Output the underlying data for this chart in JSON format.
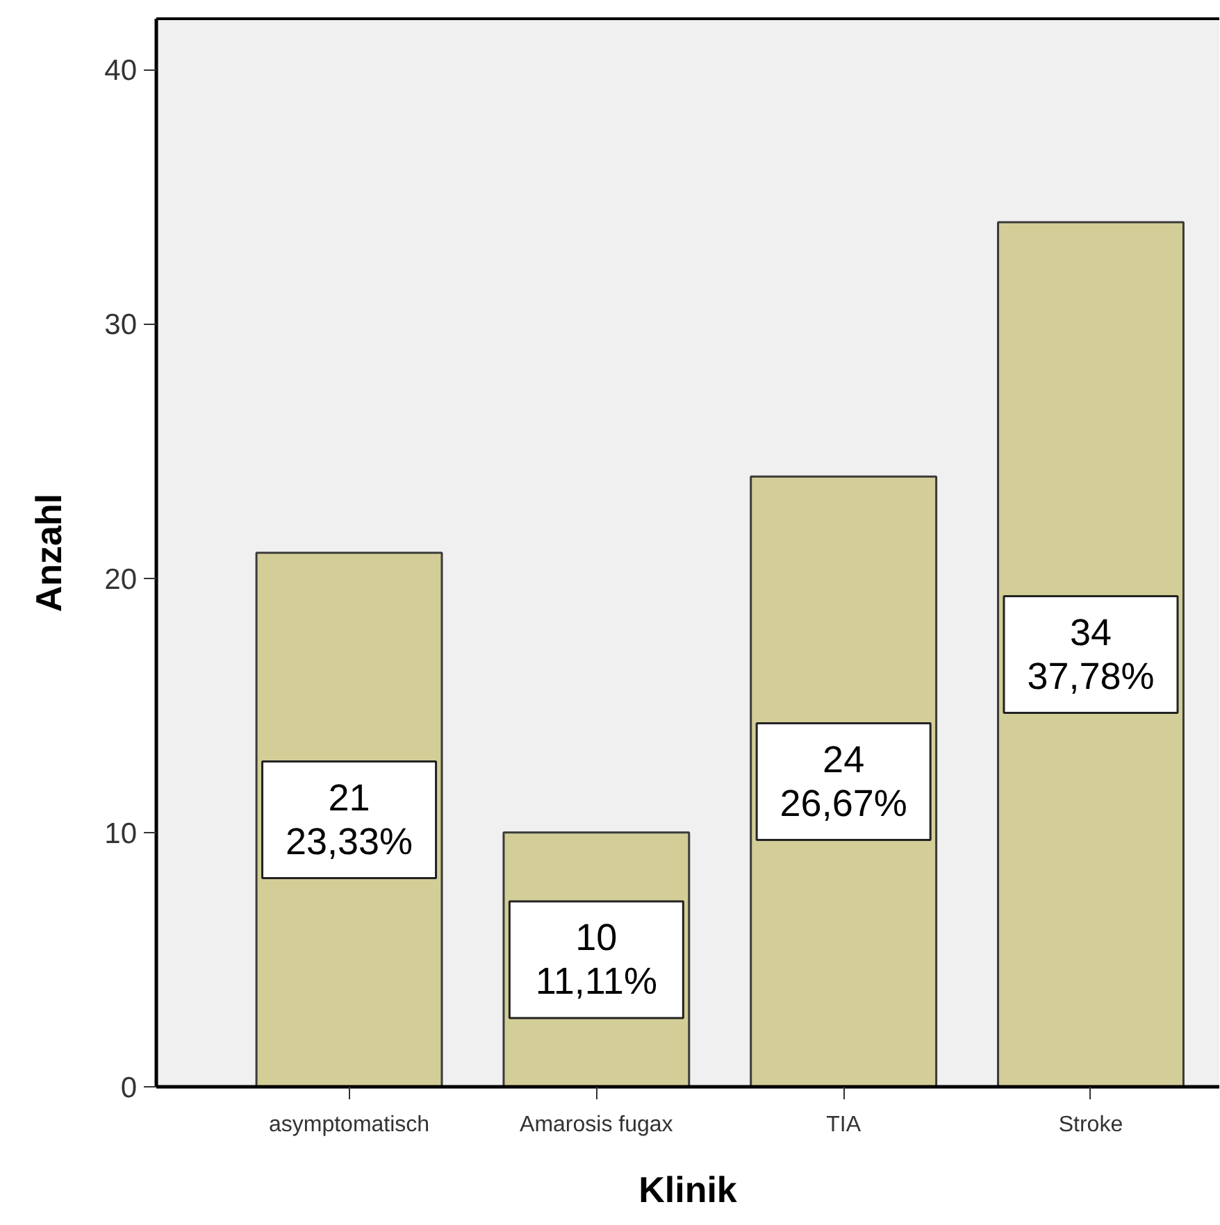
{
  "chart_data": {
    "type": "bar",
    "xlabel": "Klinik",
    "ylabel": "Anzahl",
    "categories": [
      "asymptomatisch",
      "Amarosis fugax",
      "TIA",
      "Stroke"
    ],
    "values": [
      21,
      10,
      24,
      34
    ],
    "color": "#d3ce97",
    "value_labels": [
      "21\n23,33%",
      "10\n11,11%",
      "24\n26,67%",
      "34\n37,78%"
    ],
    "ylim": [
      0,
      42
    ],
    "yticks": [
      0,
      10,
      20,
      30,
      40
    ]
  }
}
